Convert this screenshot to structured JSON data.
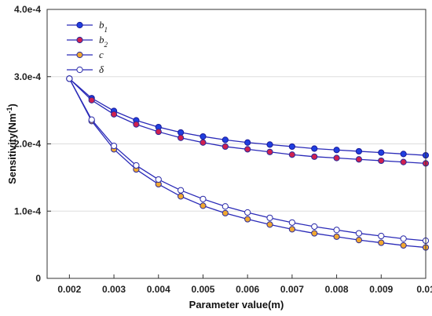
{
  "chart_data": {
    "type": "line",
    "xlabel": "Parameter value(m)",
    "ylabel_main": "Sensitivity(Nm",
    "ylabel_sup": "-1",
    "ylabel_close": ")",
    "xlim": [
      0.0015,
      0.01
    ],
    "ylim": [
      0,
      0.0004
    ],
    "xticks": [
      0.002,
      0.003,
      0.004,
      0.005,
      0.006,
      0.007,
      0.008,
      0.009,
      0.01
    ],
    "xtick_labels": [
      "0.002",
      "0.003",
      "0.004",
      "0.005",
      "0.006",
      "0.007",
      "0.008",
      "0.009",
      "0.01"
    ],
    "yticks": [
      0,
      0.0001,
      0.0002,
      0.0003,
      0.0004
    ],
    "ytick_labels": [
      "0",
      "1.0e-4",
      "2.0e-4",
      "3.0e-4",
      "4.0e-4"
    ],
    "grid_y": true,
    "legend_position": "top-left",
    "x": [
      0.002,
      0.0025,
      0.003,
      0.0035,
      0.004,
      0.0045,
      0.005,
      0.0055,
      0.006,
      0.0065,
      0.007,
      0.0075,
      0.008,
      0.0085,
      0.009,
      0.0095,
      0.01
    ],
    "series": [
      {
        "name": "b",
        "name_sub": "1",
        "line_color": "#2a2ab8",
        "marker_fill": "#1f3fe0",
        "marker_edge": "#1a1a9a",
        "values": [
          0.000297,
          0.000268,
          0.000249,
          0.000235,
          0.000225,
          0.000217,
          0.000211,
          0.000206,
          0.000202,
          0.000199,
          0.000196,
          0.000193,
          0.000191,
          0.000189,
          0.000187,
          0.000185,
          0.000183
        ]
      },
      {
        "name": "b",
        "name_sub": "2",
        "line_color": "#2a2ab8",
        "marker_fill": "#d0204f",
        "marker_edge": "#2a2a9a",
        "values": [
          0.000297,
          0.000265,
          0.000244,
          0.000229,
          0.000218,
          0.000209,
          0.000202,
          0.000196,
          0.000192,
          0.000188,
          0.000184,
          0.000181,
          0.000179,
          0.000177,
          0.000175,
          0.000173,
          0.000171
        ]
      },
      {
        "name": "c",
        "name_sub": "",
        "line_color": "#2a2ab8",
        "marker_fill": "#f0a830",
        "marker_edge": "#2a2a9a",
        "values": [
          0.000297,
          0.000234,
          0.000192,
          0.000162,
          0.00014,
          0.000122,
          0.000108,
          9.7e-05,
          8.8e-05,
          8e-05,
          7.3e-05,
          6.7e-05,
          6.2e-05,
          5.7e-05,
          5.3e-05,
          4.9e-05,
          4.6e-05
        ]
      },
      {
        "name": "δ",
        "name_sub": "",
        "line_color": "#2a2ab8",
        "marker_fill": "#ffffff",
        "marker_edge": "#2a2aa8",
        "values": [
          0.000297,
          0.000236,
          0.000197,
          0.000168,
          0.000147,
          0.000131,
          0.000118,
          0.000107,
          9.8e-05,
          9e-05,
          8.3e-05,
          7.7e-05,
          7.2e-05,
          6.7e-05,
          6.3e-05,
          5.9e-05,
          5.6e-05
        ]
      }
    ]
  }
}
